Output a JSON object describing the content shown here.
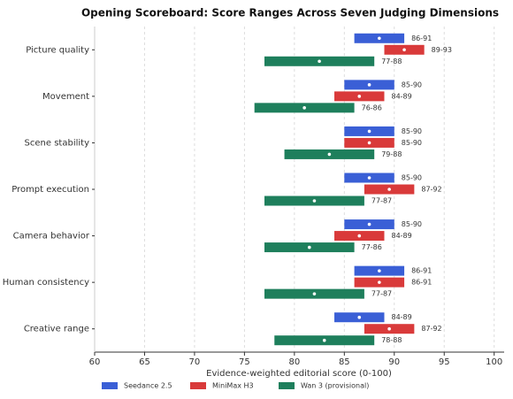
{
  "chart_data": {
    "type": "range_bar",
    "title": "Opening Scoreboard: Score Ranges Across Seven Judging Dimensions",
    "xlabel": "Evidence-weighted editorial score (0-100)",
    "categories": [
      "Picture quality",
      "Movement",
      "Scene stability",
      "Prompt execution",
      "Camera behavior",
      "Human consistency",
      "Creative range"
    ],
    "series": [
      {
        "name": "Seedance 2.5",
        "color": "#3a5fd6",
        "low": [
          86,
          85,
          85,
          85,
          85,
          86,
          84
        ],
        "high": [
          91,
          90,
          90,
          90,
          90,
          91,
          89
        ],
        "value_labels": [
          "86-91",
          "85-90",
          "85-90",
          "85-90",
          "85-90",
          "86-91",
          "84-89"
        ]
      },
      {
        "name": "MiniMax H3",
        "color": "#d93a3a",
        "low": [
          89,
          84,
          85,
          87,
          84,
          86,
          87
        ],
        "high": [
          93,
          89,
          90,
          92,
          89,
          91,
          92
        ],
        "value_labels": [
          "89-93",
          "84-89",
          "85-90",
          "87-92",
          "84-89",
          "86-91",
          "87-92"
        ]
      },
      {
        "name": "Wan 3 (provisional)",
        "color": "#1e7f5c",
        "low": [
          77,
          76,
          79,
          77,
          77,
          77,
          78
        ],
        "high": [
          88,
          86,
          88,
          87,
          86,
          87,
          88
        ],
        "value_labels": [
          "77-88",
          "76-86",
          "79-88",
          "77-87",
          "77-86",
          "77-87",
          "78-88"
        ]
      }
    ],
    "xlim": [
      60,
      101
    ],
    "xticks": [
      60,
      65,
      70,
      75,
      80,
      85,
      90,
      95,
      100
    ],
    "grid": true,
    "legend": "bottom"
  }
}
